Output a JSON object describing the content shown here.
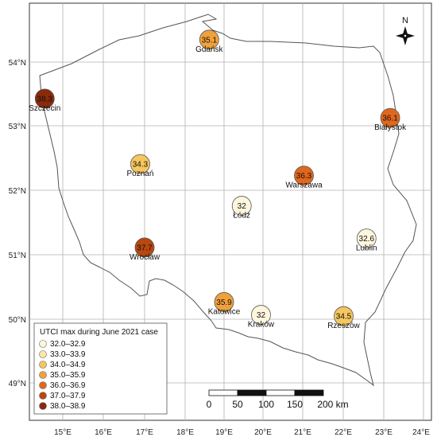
{
  "legend": {
    "title": "UTCI max during June 2021 case",
    "classes": [
      {
        "label": "32.0–32.9",
        "color": "#fdf6dc"
      },
      {
        "label": "33.0–33.9",
        "color": "#fbe7a5"
      },
      {
        "label": "34.0–34.9",
        "color": "#f6c75e"
      },
      {
        "label": "35.0–35.9",
        "color": "#f1a13c"
      },
      {
        "label": "36.0–36.9",
        "color": "#e1671c"
      },
      {
        "label": "37.0–37.9",
        "color": "#b9470f"
      },
      {
        "label": "38.0–38.9",
        "color": "#8a2a0a"
      }
    ]
  },
  "axes": {
    "lon_labels": [
      "15°E",
      "16°E",
      "17°E",
      "18°E",
      "19°E",
      "20°E",
      "21°E",
      "22°E",
      "23°E",
      "24°E"
    ],
    "lat_labels": [
      "54°N",
      "53°N",
      "52°N",
      "51°N",
      "50°N",
      "49°N"
    ]
  },
  "north_arrow": {
    "label": "N"
  },
  "scale_bar": {
    "labels": [
      "0",
      "50",
      "100",
      "150",
      "200 km"
    ]
  },
  "cities": [
    {
      "name": "Gdańsk",
      "value": "35.1",
      "lon": 18.65,
      "lat": 54.35,
      "class": 3
    },
    {
      "name": "Szczecin",
      "value": "38.3",
      "lon": 14.55,
      "lat": 53.43,
      "class": 6
    },
    {
      "name": "Białystok",
      "value": "36.1",
      "lon": 23.16,
      "lat": 53.13,
      "class": 4
    },
    {
      "name": "Poznań",
      "value": "34.3",
      "lon": 16.93,
      "lat": 52.41,
      "class": 2
    },
    {
      "name": "Warszawa",
      "value": "36.3",
      "lon": 21.01,
      "lat": 52.23,
      "class": 4
    },
    {
      "name": "Łódź",
      "value": "32",
      "lon": 19.46,
      "lat": 51.76,
      "class": 0
    },
    {
      "name": "Lublin",
      "value": "32.6",
      "lon": 22.57,
      "lat": 51.25,
      "class": 0
    },
    {
      "name": "Wrocław",
      "value": "37.7",
      "lon": 17.04,
      "lat": 51.11,
      "class": 5
    },
    {
      "name": "Katowice",
      "value": "35.9",
      "lon": 19.02,
      "lat": 50.26,
      "class": 3
    },
    {
      "name": "Kraków",
      "value": "32",
      "lon": 19.94,
      "lat": 50.06,
      "class": 0
    },
    {
      "name": "Rzeszów",
      "value": "34.5",
      "lon": 22.0,
      "lat": 50.04,
      "class": 2
    }
  ]
}
